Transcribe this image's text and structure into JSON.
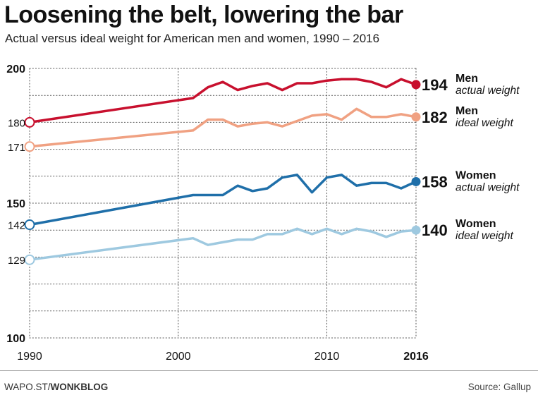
{
  "header": {
    "title": "Loosening the belt, lowering the bar",
    "subtitle": "Actual versus ideal weight for American men and women, 1990 – 2016"
  },
  "footer": {
    "credit_prefix": "WAPO.ST/",
    "credit_bold": "WONKBLOG",
    "source": "Source: Gallup"
  },
  "chart_data": {
    "type": "line",
    "title": "Loosening the belt, lowering the bar",
    "subtitle": "Actual versus ideal weight for American men and women, 1990 – 2016",
    "xlabel": "",
    "ylabel": "",
    "xlim": [
      1990,
      2016
    ],
    "ylim": [
      100,
      200
    ],
    "x_ticks": [
      "1990",
      "2000",
      "2010",
      "2016"
    ],
    "y_ticks": [
      "200",
      "150",
      "100"
    ],
    "grid": true,
    "series": [
      {
        "name": "Men",
        "sub": "actual weight",
        "color": "#c8102e",
        "end_label": "194",
        "start_label": "180",
        "x": [
          1990,
          2001,
          2002,
          2003,
          2004,
          2005,
          2006,
          2007,
          2008,
          2009,
          2010,
          2011,
          2012,
          2013,
          2014,
          2015,
          2016
        ],
        "y": [
          180,
          189,
          193,
          195,
          192,
          193.5,
          194.5,
          192,
          194.5,
          194.5,
          195.5,
          196,
          196,
          195,
          193,
          196,
          194
        ]
      },
      {
        "name": "Men",
        "sub": "ideal weight",
        "color": "#f0a182",
        "end_label": "182",
        "start_label": "171",
        "x": [
          1990,
          2001,
          2002,
          2003,
          2004,
          2005,
          2006,
          2007,
          2008,
          2009,
          2010,
          2011,
          2012,
          2013,
          2014,
          2015,
          2016
        ],
        "y": [
          171,
          177,
          181,
          181,
          178.5,
          179.5,
          180,
          178.5,
          180.5,
          182.5,
          183,
          181,
          185,
          182,
          182,
          183,
          182
        ]
      },
      {
        "name": "Women",
        "sub": "actual weight",
        "color": "#1f6fa9",
        "end_label": "158",
        "start_label": "142",
        "x": [
          1990,
          2001,
          2002,
          2003,
          2004,
          2005,
          2006,
          2007,
          2008,
          2009,
          2010,
          2011,
          2012,
          2013,
          2014,
          2015,
          2016
        ],
        "y": [
          142,
          153,
          153,
          153,
          156.5,
          154.5,
          155.5,
          159.5,
          160.5,
          154,
          159.5,
          160.5,
          156.5,
          157.5,
          157.5,
          155.5,
          158
        ]
      },
      {
        "name": "Women",
        "sub": "ideal weight",
        "color": "#9ec9e0",
        "end_label": "140",
        "start_label": "129",
        "x": [
          1990,
          2001,
          2002,
          2003,
          2004,
          2005,
          2006,
          2007,
          2008,
          2009,
          2010,
          2011,
          2012,
          2013,
          2014,
          2015,
          2016
        ],
        "y": [
          129,
          137,
          134.5,
          135.5,
          136.5,
          136.5,
          138.5,
          138.5,
          140.5,
          138.5,
          140.5,
          138.5,
          140.5,
          139.5,
          137.5,
          139.5,
          140
        ]
      }
    ]
  }
}
